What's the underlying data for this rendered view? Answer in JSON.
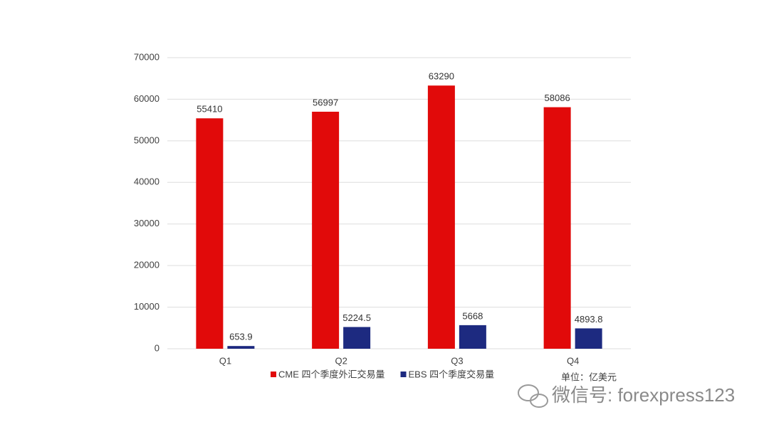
{
  "chart_data": {
    "type": "bar",
    "categories": [
      "Q1",
      "Q2",
      "Q3",
      "Q4"
    ],
    "series": [
      {
        "name": "CME 四个季度外汇交易量",
        "color": "#e10a0a",
        "values": [
          55410,
          56997,
          63290,
          58086
        ]
      },
      {
        "name": "EBS 四个季度交易量",
        "color": "#1d2a80",
        "values": [
          653.9,
          5224.5,
          5668,
          4893.8
        ]
      }
    ],
    "ylim": [
      0,
      70000
    ],
    "yticks": [
      0,
      10000,
      20000,
      30000,
      40000,
      50000,
      60000,
      70000
    ],
    "grid": true,
    "legend": "bottom",
    "annotations": [
      "单位：亿美元",
      "微信号: forexpress123"
    ]
  }
}
